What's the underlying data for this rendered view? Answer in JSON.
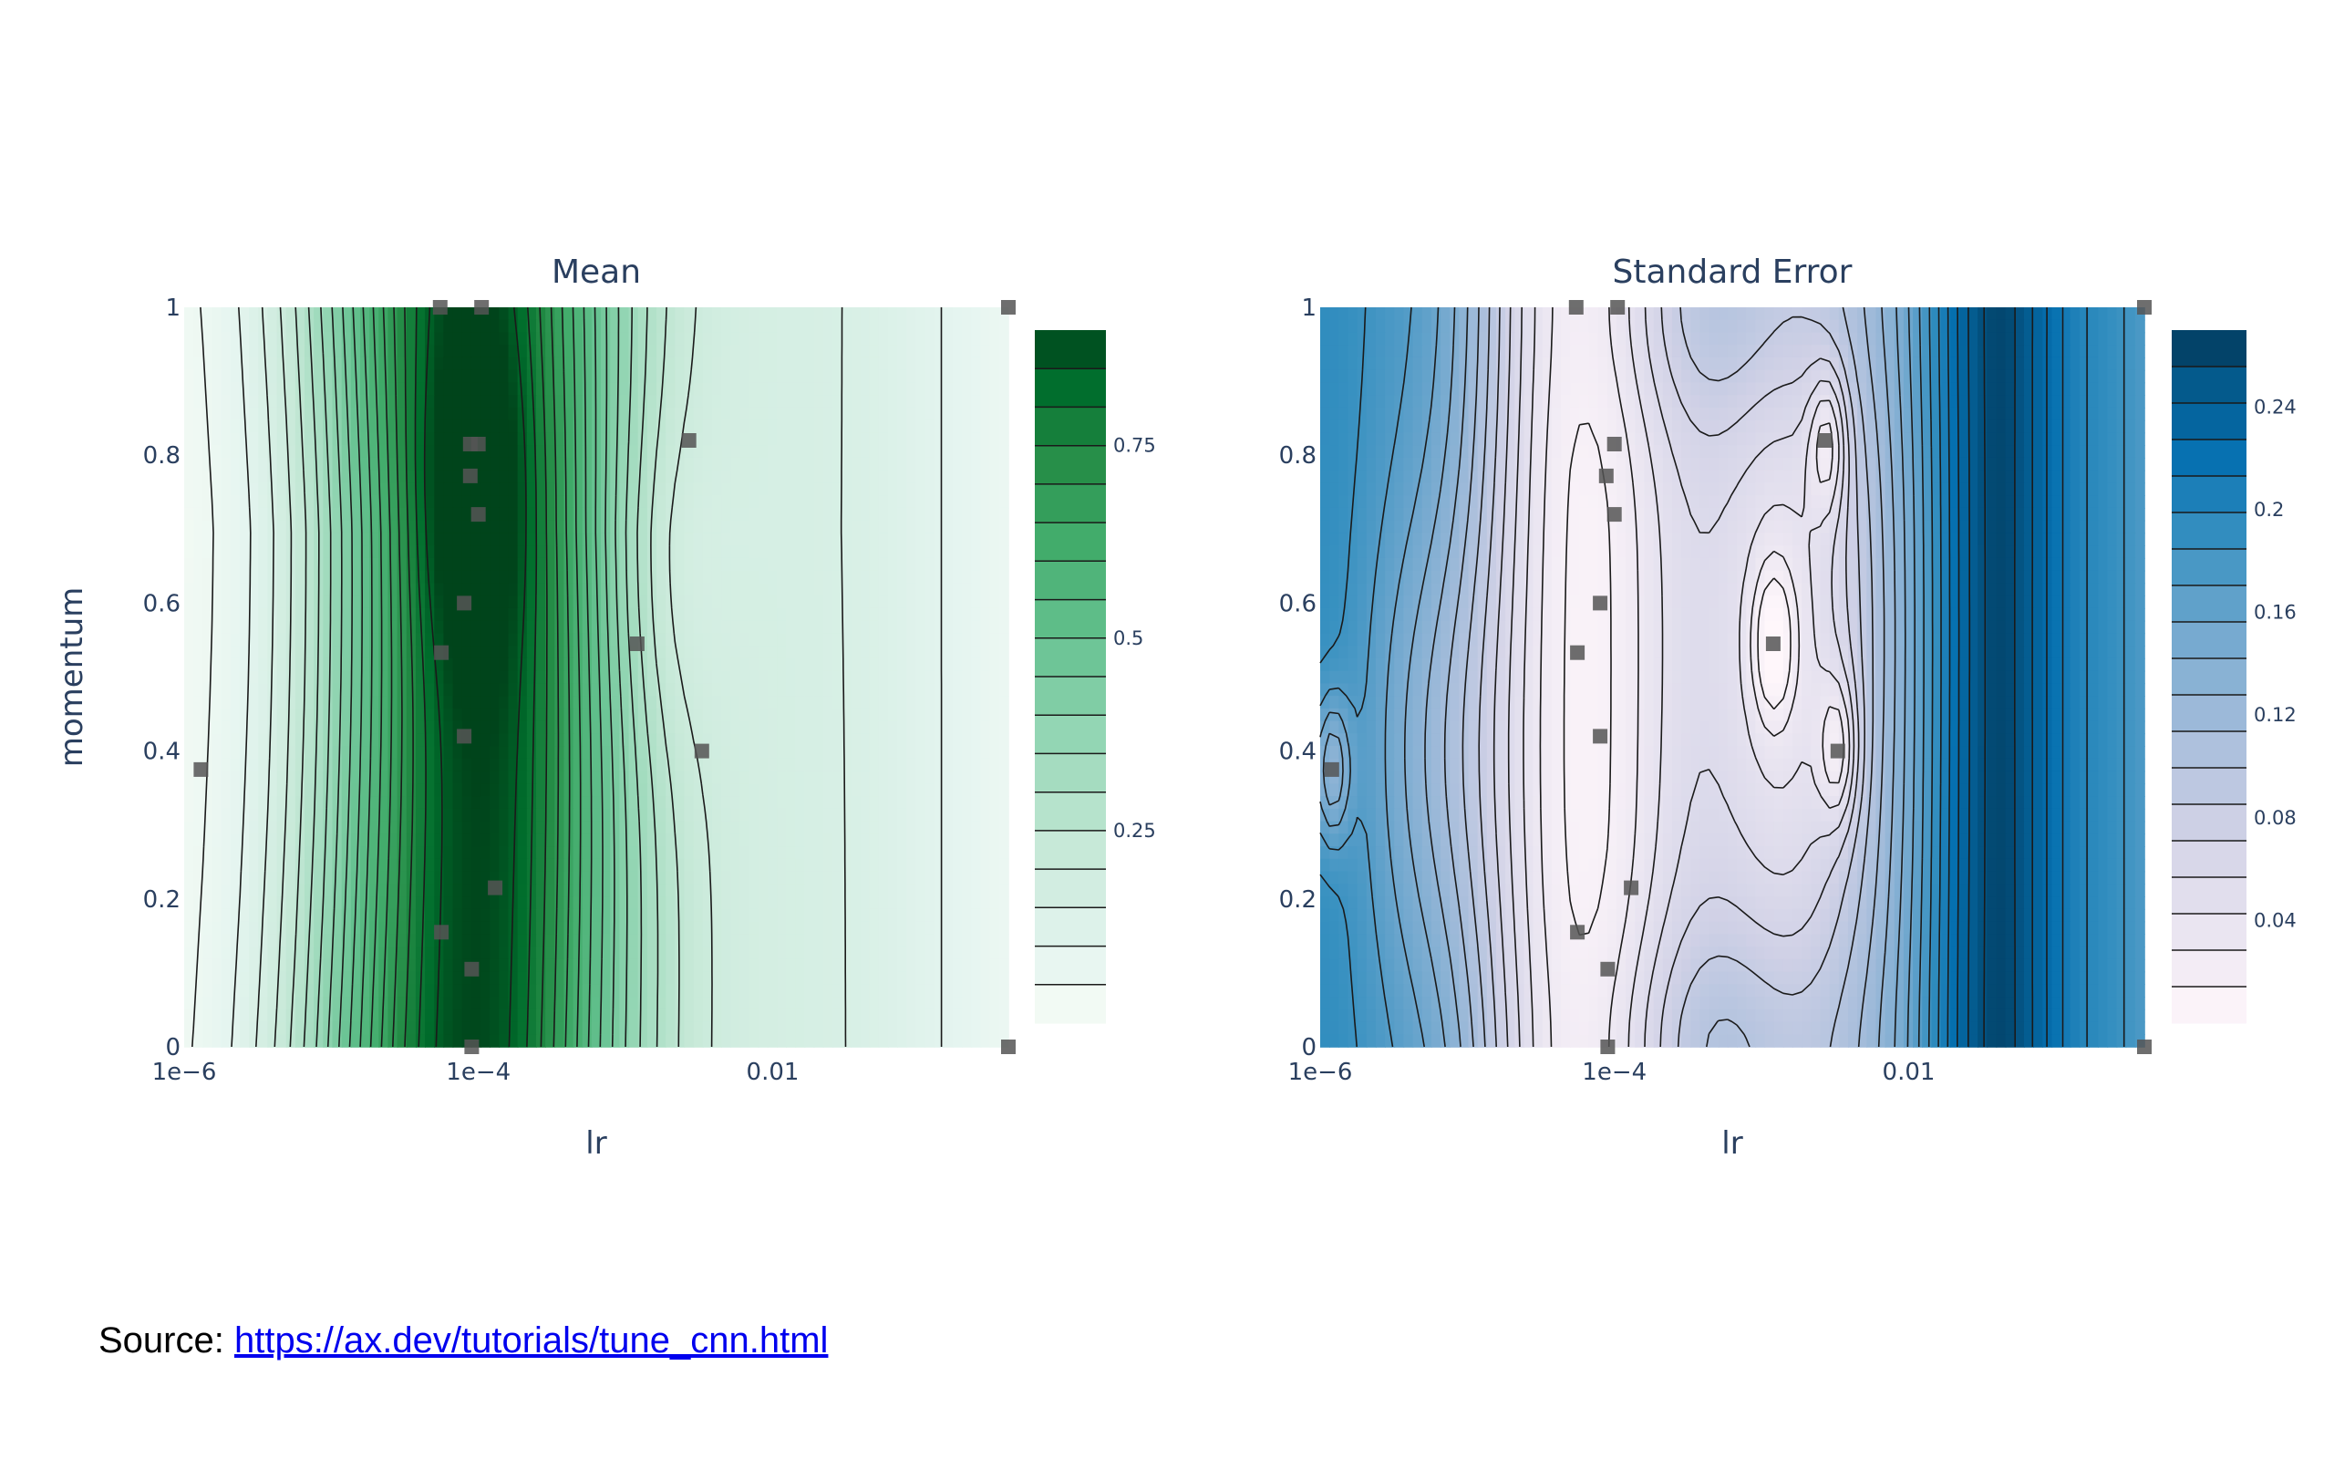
{
  "chart_data": [
    {
      "type": "contour",
      "title": "Mean",
      "xlabel": "lr",
      "ylabel": "momentum",
      "x_scale": "log",
      "xlim": [
        1e-06,
        0.4
      ],
      "ylim": [
        0,
        1
      ],
      "x_ticks": [
        "1e−6",
        "1e−4",
        "0.01"
      ],
      "y_ticks": [
        "0",
        "0.2",
        "0.4",
        "0.6",
        "0.8",
        "1"
      ],
      "colorscale": "greens",
      "colorbar_ticks": [
        "0.25",
        "0.5",
        "0.75"
      ],
      "colorbar_range": [
        0.0,
        0.9
      ],
      "contour_levels": 17,
      "color_low": "#f7fcfb",
      "color_high": "#00441b",
      "points": [
        {
          "lr": 1.3e-06,
          "momentum": 0.375
        },
        {
          "lr": 5.5e-05,
          "momentum": 1.0
        },
        {
          "lr": 0.000105,
          "momentum": 1.0
        },
        {
          "lr": 0.0001,
          "momentum": 0.815
        },
        {
          "lr": 8.8e-05,
          "momentum": 0.815
        },
        {
          "lr": 8.8e-05,
          "momentum": 0.772
        },
        {
          "lr": 0.0001,
          "momentum": 0.72
        },
        {
          "lr": 8e-05,
          "momentum": 0.6
        },
        {
          "lr": 5.6e-05,
          "momentum": 0.533
        },
        {
          "lr": 8e-05,
          "momentum": 0.42
        },
        {
          "lr": 0.00013,
          "momentum": 0.215
        },
        {
          "lr": 5.6e-05,
          "momentum": 0.155
        },
        {
          "lr": 9e-05,
          "momentum": 0.105
        },
        {
          "lr": 9e-05,
          "momentum": 0.0
        },
        {
          "lr": 0.0012,
          "momentum": 0.545
        },
        {
          "lr": 0.0027,
          "momentum": 0.82
        },
        {
          "lr": 0.0033,
          "momentum": 0.4
        },
        {
          "lr": 0.4,
          "momentum": 1.0
        },
        {
          "lr": 0.4,
          "momentum": 0.0
        }
      ]
    },
    {
      "type": "contour",
      "title": "Standard Error",
      "xlabel": "lr",
      "x_scale": "log",
      "xlim": [
        1e-06,
        0.4
      ],
      "ylim": [
        0,
        1
      ],
      "x_ticks": [
        "1e−6",
        "1e−4",
        "0.01"
      ],
      "y_ticks": [
        "0",
        "0.2",
        "0.4",
        "0.6",
        "0.8",
        "1"
      ],
      "colorscale": "purple-blue",
      "colorbar_ticks": [
        "0.04",
        "0.08",
        "0.12",
        "0.16",
        "0.2",
        "0.24"
      ],
      "colorbar_range": [
        0.0,
        0.27
      ],
      "contour_levels": 18,
      "color_low": "#fff7fb",
      "color_high": "#023858",
      "points": [
        {
          "lr": 1.2e-06,
          "momentum": 0.375
        },
        {
          "lr": 5.5e-05,
          "momentum": 1.0
        },
        {
          "lr": 0.000105,
          "momentum": 1.0
        },
        {
          "lr": 0.0001,
          "momentum": 0.815
        },
        {
          "lr": 8.8e-05,
          "momentum": 0.772
        },
        {
          "lr": 0.0001,
          "momentum": 0.72
        },
        {
          "lr": 8e-05,
          "momentum": 0.6
        },
        {
          "lr": 5.6e-05,
          "momentum": 0.533
        },
        {
          "lr": 8e-05,
          "momentum": 0.42
        },
        {
          "lr": 0.00013,
          "momentum": 0.215
        },
        {
          "lr": 5.6e-05,
          "momentum": 0.155
        },
        {
          "lr": 9e-05,
          "momentum": 0.105
        },
        {
          "lr": 9e-05,
          "momentum": 0.0
        },
        {
          "lr": 0.0012,
          "momentum": 0.545
        },
        {
          "lr": 0.0027,
          "momentum": 0.82
        },
        {
          "lr": 0.0033,
          "momentum": 0.4
        },
        {
          "lr": 0.4,
          "momentum": 1.0
        },
        {
          "lr": 0.4,
          "momentum": 0.0
        }
      ]
    }
  ],
  "source": {
    "label": "Source: ",
    "link_text": "https://ax.dev/tutorials/tune_cnn.html"
  }
}
